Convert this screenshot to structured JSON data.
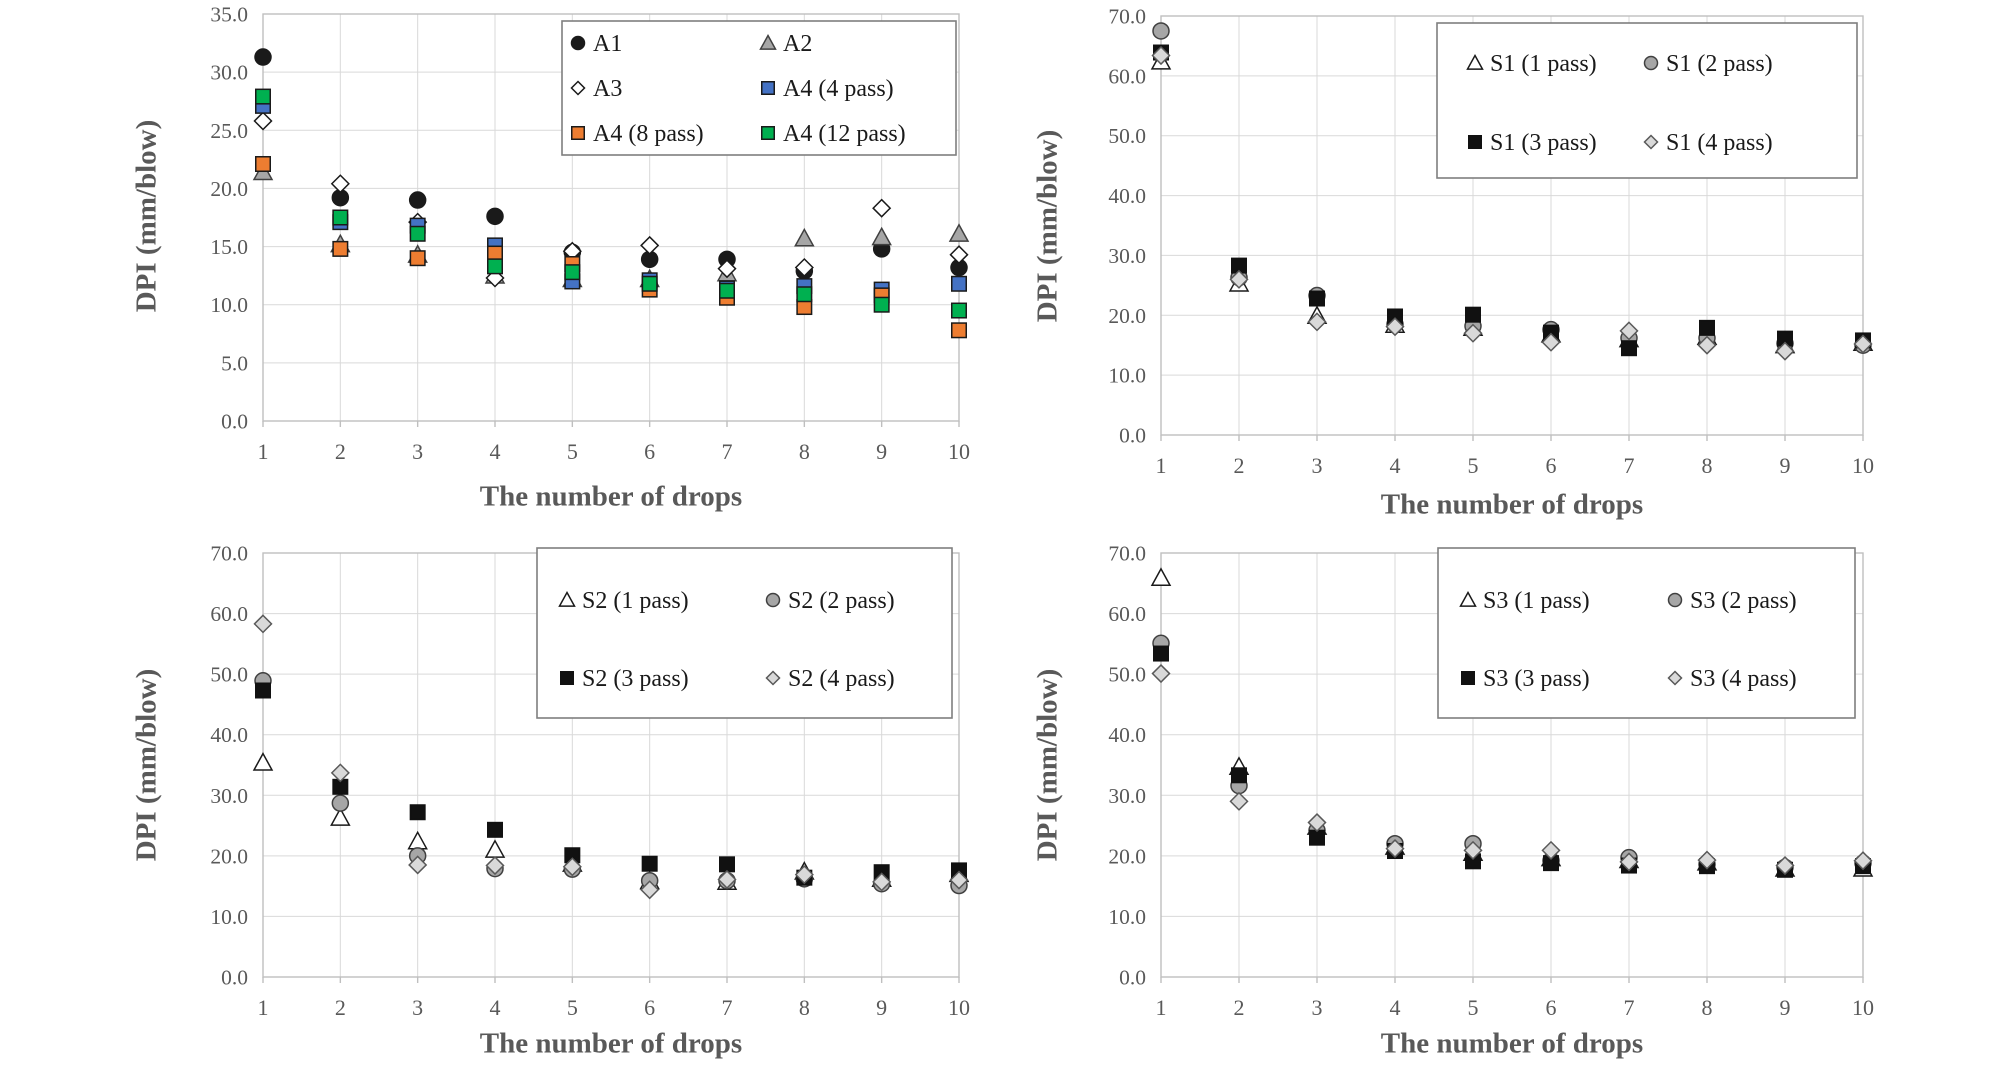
{
  "figure": {
    "background": "#ffffff",
    "text_color": "#595959",
    "grid_color": "#d9d9d9",
    "axis_color": "#bfbfbf",
    "legend_border_color": "#7f7f7f",
    "legend_text_color": "#1a1a1a"
  },
  "chart_data": [
    {
      "id": "a",
      "type": "scatter",
      "title": "",
      "xlabel": "The number of drops",
      "ylabel": "DPI (mm/blow)",
      "x": [
        1,
        2,
        3,
        4,
        5,
        6,
        7,
        8,
        9,
        10
      ],
      "xlim": [
        1,
        10
      ],
      "ylim": [
        0,
        35
      ],
      "ytick_step": 5,
      "grid": true,
      "legend": {
        "position": "inside-top-right",
        "columns": 2
      },
      "series": [
        {
          "name": "A1",
          "marker": "circle",
          "fill": "#1a1a1a",
          "stroke": "#1a1a1a",
          "values": [
            31.3,
            19.2,
            19.0,
            17.6,
            14.5,
            13.9,
            13.9,
            12.9,
            14.8,
            13.2
          ]
        },
        {
          "name": "A2",
          "marker": "triangle",
          "fill": "#a6a6a6",
          "stroke": "#404040",
          "values": [
            21.4,
            15.2,
            14.3,
            12.5,
            12.2,
            12.2,
            12.7,
            15.7,
            15.8,
            16.1
          ]
        },
        {
          "name": "A3",
          "marker": "diamond",
          "fill": "#ffffff",
          "stroke": "#1a1a1a",
          "values": [
            25.8,
            20.4,
            17.1,
            12.3,
            14.6,
            15.1,
            13.1,
            13.2,
            18.3,
            14.3
          ]
        },
        {
          "name": "A4 (4 pass)",
          "marker": "square",
          "fill": "#4472c4",
          "stroke": "#1a1a1a",
          "values": [
            27.1,
            17.1,
            16.8,
            15.1,
            12.0,
            12.1,
            11.4,
            11.6,
            11.3,
            11.8
          ]
        },
        {
          "name": "A4 (8 pass)",
          "marker": "square",
          "fill": "#ed7d31",
          "stroke": "#1a1a1a",
          "values": [
            22.1,
            14.8,
            14.0,
            14.4,
            13.5,
            11.3,
            10.6,
            9.8,
            10.8,
            7.8
          ]
        },
        {
          "name": "A4 (12 pass)",
          "marker": "square",
          "fill": "#00b050",
          "stroke": "#1a1a1a",
          "values": [
            27.9,
            17.5,
            16.1,
            13.3,
            12.8,
            11.8,
            11.2,
            10.9,
            10.0,
            9.5
          ]
        }
      ]
    },
    {
      "id": "s1",
      "type": "scatter",
      "title": "",
      "xlabel": "The number of drops",
      "ylabel": "DPI (mm/blow)",
      "x": [
        1,
        2,
        3,
        4,
        5,
        6,
        7,
        8,
        9,
        10
      ],
      "xlim": [
        1,
        10
      ],
      "ylim": [
        0,
        70
      ],
      "ytick_step": 10,
      "grid": true,
      "legend": {
        "position": "inside-top-right",
        "columns": 2
      },
      "series": [
        {
          "name": "S1 (1 pass)",
          "marker": "triangle",
          "fill": "#ffffff",
          "stroke": "#1a1a1a",
          "values": [
            62.4,
            25.3,
            19.9,
            18.4,
            17.9,
            16.8,
            16.0,
            16.4,
            15.0,
            15.4
          ]
        },
        {
          "name": "S1 (2 pass)",
          "marker": "circle",
          "fill": "#a6a6a6",
          "stroke": "#404040",
          "values": [
            67.5,
            26.3,
            23.3,
            18.5,
            18.2,
            17.6,
            16.2,
            16.2,
            15.3,
            15.0
          ]
        },
        {
          "name": "S1 (3 pass)",
          "marker": "square",
          "fill": "#111111",
          "stroke": "#111111",
          "values": [
            63.9,
            28.3,
            22.8,
            19.8,
            20.1,
            17.1,
            14.5,
            17.9,
            16.1,
            15.8
          ]
        },
        {
          "name": "S1 (4 pass)",
          "marker": "diamond",
          "fill": "#d9d9d9",
          "stroke": "#595959",
          "values": [
            63.4,
            26.0,
            18.9,
            18.1,
            17.0,
            15.5,
            17.4,
            15.0,
            14.0,
            15.2
          ]
        }
      ]
    },
    {
      "id": "s2",
      "type": "scatter",
      "title": "",
      "xlabel": "The number of drops",
      "ylabel": "DPI (mm/blow)",
      "x": [
        1,
        2,
        3,
        4,
        5,
        6,
        7,
        8,
        9,
        10
      ],
      "xlim": [
        1,
        10
      ],
      "ylim": [
        0,
        70
      ],
      "ytick_step": 10,
      "grid": true,
      "legend": {
        "position": "inside-top-right",
        "columns": 2
      },
      "series": [
        {
          "name": "S2 (1 pass)",
          "marker": "triangle",
          "fill": "#ffffff",
          "stroke": "#1a1a1a",
          "values": [
            35.4,
            26.3,
            22.4,
            21.0,
            18.7,
            15.8,
            15.7,
            17.4,
            16.2,
            17.0
          ]
        },
        {
          "name": "S2 (2 pass)",
          "marker": "circle",
          "fill": "#a6a6a6",
          "stroke": "#404040",
          "values": [
            48.9,
            28.7,
            20.0,
            17.9,
            17.8,
            15.9,
            15.9,
            16.2,
            15.4,
            15.1
          ]
        },
        {
          "name": "S2 (3 pass)",
          "marker": "square",
          "fill": "#111111",
          "stroke": "#111111",
          "values": [
            47.3,
            31.4,
            27.2,
            24.3,
            20.1,
            18.7,
            18.6,
            16.4,
            17.3,
            17.6
          ]
        },
        {
          "name": "S2 (4 pass)",
          "marker": "diamond",
          "fill": "#d9d9d9",
          "stroke": "#595959",
          "values": [
            58.3,
            33.7,
            18.5,
            18.4,
            18.2,
            14.4,
            16.1,
            16.9,
            15.7,
            16.0
          ]
        }
      ]
    },
    {
      "id": "s3",
      "type": "scatter",
      "title": "",
      "xlabel": "The number of drops",
      "ylabel": "DPI (mm/blow)",
      "x": [
        1,
        2,
        3,
        4,
        5,
        6,
        7,
        8,
        9,
        10
      ],
      "xlim": [
        1,
        10
      ],
      "ylim": [
        0,
        70
      ],
      "ytick_step": 10,
      "grid": true,
      "legend": {
        "position": "inside-top-right",
        "columns": 2
      },
      "series": [
        {
          "name": "S3 (1 pass)",
          "marker": "triangle",
          "fill": "#ffffff",
          "stroke": "#1a1a1a",
          "values": [
            65.9,
            34.7,
            24.8,
            21.5,
            20.5,
            19.6,
            19.3,
            18.9,
            17.9,
            17.9
          ]
        },
        {
          "name": "S3 (2 pass)",
          "marker": "circle",
          "fill": "#a6a6a6",
          "stroke": "#404040",
          "values": [
            55.1,
            31.6,
            24.2,
            22.0,
            22.0,
            19.2,
            19.7,
            18.6,
            18.1,
            18.8
          ]
        },
        {
          "name": "S3 (3 pass)",
          "marker": "square",
          "fill": "#111111",
          "stroke": "#111111",
          "values": [
            53.4,
            33.3,
            23.0,
            20.8,
            19.1,
            18.8,
            18.4,
            18.3,
            17.7,
            18.3
          ]
        },
        {
          "name": "S3 (4 pass)",
          "marker": "diamond",
          "fill": "#d9d9d9",
          "stroke": "#595959",
          "values": [
            50.1,
            29.0,
            25.5,
            21.2,
            20.9,
            20.9,
            19.0,
            19.3,
            18.4,
            19.2
          ]
        }
      ]
    }
  ]
}
